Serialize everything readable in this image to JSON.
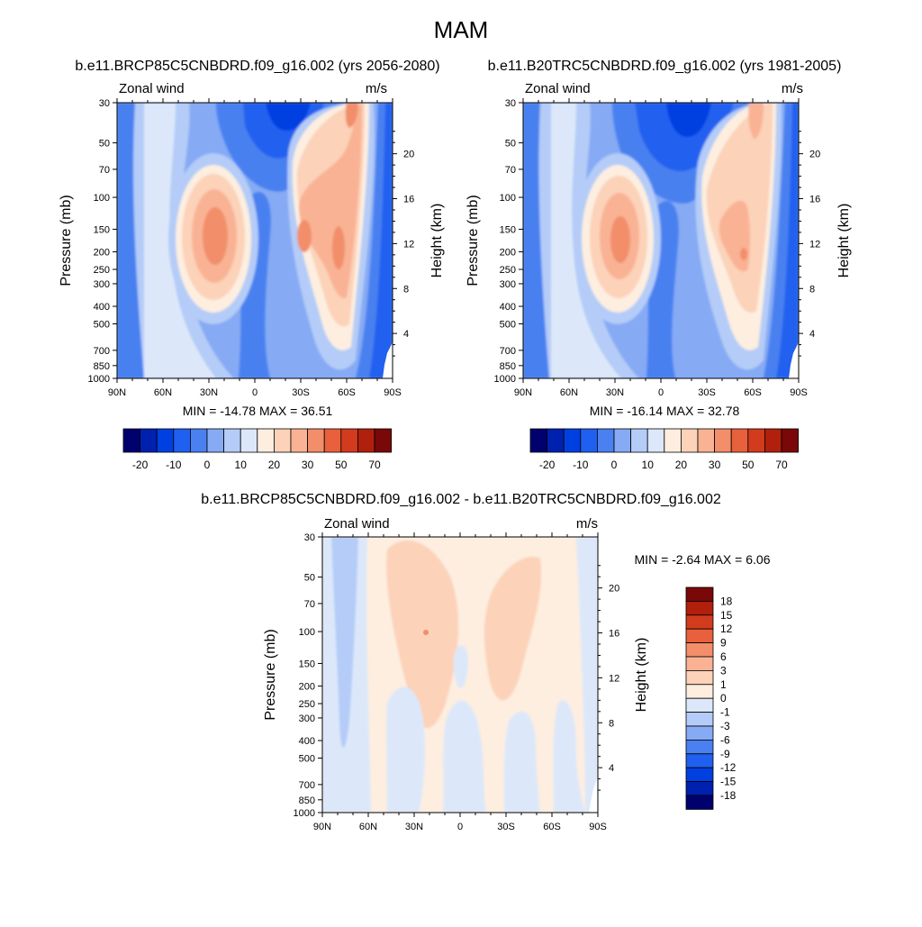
{
  "page_title": "MAM",
  "colors": {
    "main_scale": [
      "#00006e",
      "#0020b0",
      "#0040e0",
      "#2060f0",
      "#4a80f0",
      "#86aaf4",
      "#b4ccf7",
      "#dce8fa",
      "#fdeee0",
      "#fcd2b9",
      "#f9b294",
      "#f28e6a",
      "#e8603c",
      "#d23b1e",
      "#b0200c",
      "#7a0808"
    ],
    "diff_scale": [
      "#00006e",
      "#0020b0",
      "#0040e0",
      "#2060f0",
      "#4a80f0",
      "#86aaf4",
      "#b4ccf7",
      "#dce8fa",
      "#fdeee0",
      "#fcd2b9",
      "#f9b294",
      "#f28e6a",
      "#e8603c",
      "#d23b1e",
      "#b0200c",
      "#7a0808"
    ]
  },
  "chart_data": [
    {
      "type": "heatmap",
      "title": "b.e11.BRCP85C5CNBDRD.f09_g16.002 (yrs 2056-2080)",
      "left_label": "Zonal wind",
      "right_label": "m/s",
      "ylabel": "Pressure (mb)",
      "y2label": "Height (km)",
      "x_ticks": [
        "90N",
        "60N",
        "30N",
        "0",
        "30S",
        "60S",
        "90S"
      ],
      "y_ticks": [
        "30",
        "50",
        "70",
        "100",
        "150",
        "200",
        "250",
        "300",
        "400",
        "500",
        "700",
        "850",
        "1000"
      ],
      "y2_ticks": [
        "20",
        "16",
        "12",
        "8",
        "4"
      ],
      "stats": "MIN = -14.78  MAX = 36.51",
      "xlim": [
        90,
        -90
      ],
      "ylim": [
        1000,
        30
      ],
      "fields": {
        "westerly_jet_nh": {
          "lat": 30,
          "p": 180,
          "max": 36.51
        },
        "westerly_jet_sh": {
          "lat": -40,
          "p": 180,
          "max": 35
        },
        "easterly_min": {
          "lat": 15,
          "p": 30,
          "min": -14.78
        }
      },
      "colorbar_labels": [
        "-20",
        "-10",
        "0",
        "10",
        "20",
        "30",
        "50",
        "70"
      ]
    },
    {
      "type": "heatmap",
      "title": "b.e11.B20TRC5CNBDRD.f09_g16.002 (yrs 1981-2005)",
      "left_label": "Zonal wind",
      "right_label": "m/s",
      "ylabel": "Pressure (mb)",
      "y2label": "Height (km)",
      "x_ticks": [
        "90N",
        "60N",
        "30N",
        "0",
        "30S",
        "60S",
        "90S"
      ],
      "y_ticks": [
        "30",
        "50",
        "70",
        "100",
        "150",
        "200",
        "250",
        "300",
        "400",
        "500",
        "700",
        "850",
        "1000"
      ],
      "y2_ticks": [
        "20",
        "16",
        "12",
        "8",
        "4"
      ],
      "stats": "MIN = -16.14  MAX = 32.78",
      "xlim": [
        90,
        -90
      ],
      "ylim": [
        1000,
        30
      ],
      "fields": {
        "westerly_jet_nh": {
          "lat": 30,
          "p": 180,
          "max": 32.78
        },
        "westerly_jet_sh": {
          "lat": -45,
          "p": 200,
          "max": 30
        },
        "easterly_min": {
          "lat": 15,
          "p": 30,
          "min": -16.14
        }
      },
      "colorbar_labels": [
        "-20",
        "-10",
        "0",
        "10",
        "20",
        "30",
        "50",
        "70"
      ]
    },
    {
      "type": "heatmap",
      "title": "b.e11.BRCP85C5CNBDRD.f09_g16.002 - b.e11.B20TRC5CNBDRD.f09_g16.002",
      "left_label": "Zonal wind",
      "right_label": "m/s",
      "ylabel": "Pressure (mb)",
      "y2label": "Height (km)",
      "x_ticks": [
        "90N",
        "60N",
        "30N",
        "0",
        "30S",
        "60S",
        "90S"
      ],
      "y_ticks": [
        "30",
        "50",
        "70",
        "100",
        "150",
        "200",
        "250",
        "300",
        "400",
        "500",
        "700",
        "850",
        "1000"
      ],
      "y2_ticks": [
        "20",
        "16",
        "12",
        "8",
        "4"
      ],
      "stats": "MIN =  -2.64  MAX =   6.06",
      "xlim": [
        90,
        -90
      ],
      "ylim": [
        1000,
        30
      ],
      "colorbar_labels": [
        "18",
        "15",
        "12",
        "9",
        "6",
        "3",
        "1",
        "0",
        "-1",
        "-3",
        "-6",
        "-9",
        "-12",
        "-15",
        "-18"
      ]
    }
  ]
}
